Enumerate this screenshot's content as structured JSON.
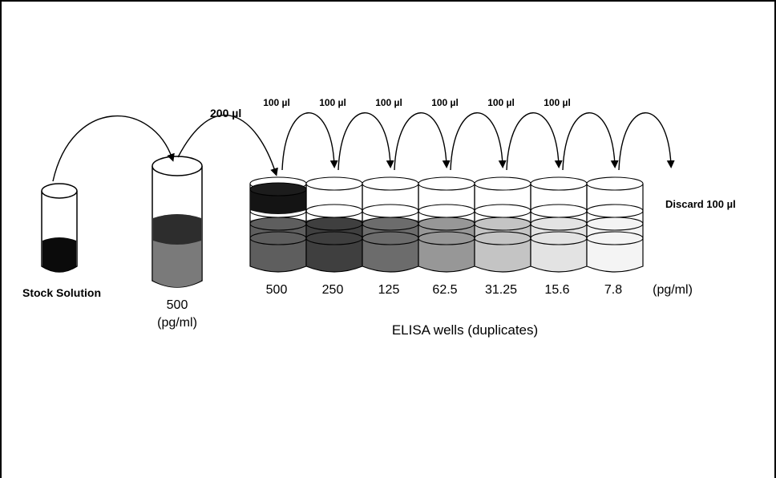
{
  "stock_label": "Stock Solution",
  "transfer_label": "200 µl",
  "well_transfer_labels": [
    "100 µl",
    "100 µl",
    "100 µl",
    "100 µl",
    "100 µl",
    "100 µl"
  ],
  "discard_label": "Discard 100 µl",
  "tube_conc": {
    "value": "500",
    "unit": "(pg/ml)"
  },
  "wells": [
    {
      "label": "500",
      "fill": "#5e5e5e",
      "top": "#141414"
    },
    {
      "label": "250",
      "fill": "#3f3f3f",
      "top": "#3f3f3f"
    },
    {
      "label": "125",
      "fill": "#6c6c6c",
      "top": "#6c6c6c"
    },
    {
      "label": "62.5",
      "fill": "#979797",
      "top": "#979797"
    },
    {
      "label": "31.25",
      "fill": "#c4c4c4",
      "top": "#c4c4c4"
    },
    {
      "label": "15.6",
      "fill": "#e3e3e3",
      "top": "#e3e3e3"
    },
    {
      "label": "7.8",
      "fill": "#f4f4f4",
      "top": "#f4f4f4"
    }
  ],
  "units_label": "(pg/ml)",
  "wells_caption": "ELISA wells (duplicates)"
}
